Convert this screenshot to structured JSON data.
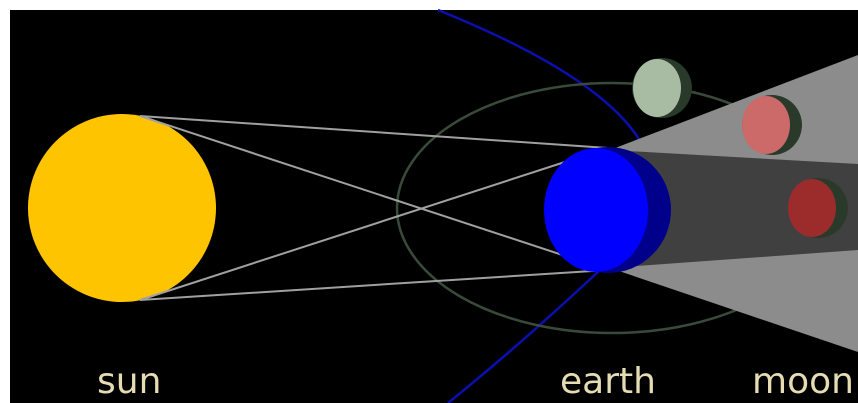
{
  "labels": {
    "sun": "sun",
    "earth": "earth",
    "moon": "moon"
  },
  "colors": {
    "background": "#000000",
    "frame": "#ffffff",
    "sun": "#ffc400",
    "earth": "#0000ff",
    "earth_shadow_side": "#00008a",
    "earth_orbit": "#0a10b0",
    "moon_orbit": "#3a4a3a",
    "ray_lines": "#a0a0a0",
    "penumbra": "#8c8c8c",
    "umbra": "#404040",
    "moon_full": "#a8bca4",
    "moon_penumbral": "#cc6a6a",
    "moon_umbral": "#9c2c2c",
    "moon_dark_side": "#2a3a2a",
    "label_text": "#e6dcb4"
  }
}
